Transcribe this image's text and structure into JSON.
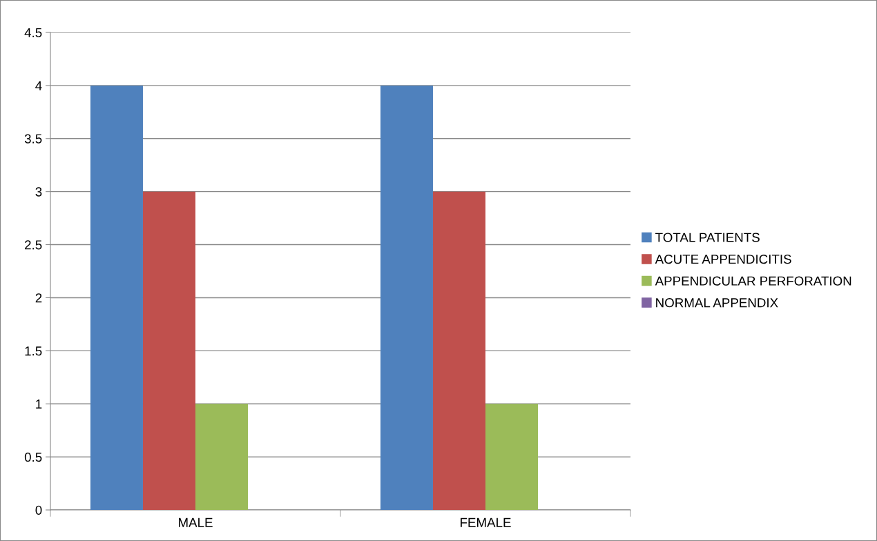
{
  "chart_data": {
    "type": "bar",
    "categories": [
      "MALE",
      "FEMALE"
    ],
    "series": [
      {
        "name": "TOTAL PATIENTS",
        "color": "#4f81bd",
        "values": [
          4,
          4
        ]
      },
      {
        "name": "ACUTE APPENDICITIS",
        "color": "#c0504d",
        "values": [
          3,
          3
        ]
      },
      {
        "name": "APPENDICULAR PERFORATION",
        "color": "#9bbb59",
        "values": [
          1,
          1
        ]
      },
      {
        "name": "NORMAL APPENDIX",
        "color": "#8064a2",
        "values": [
          0,
          0
        ]
      }
    ],
    "ylim": [
      0,
      4.5
    ],
    "yticks": [
      0,
      0.5,
      1,
      1.5,
      2,
      2.5,
      3,
      3.5,
      4,
      4.5
    ],
    "grid": "y",
    "legend": "right"
  }
}
